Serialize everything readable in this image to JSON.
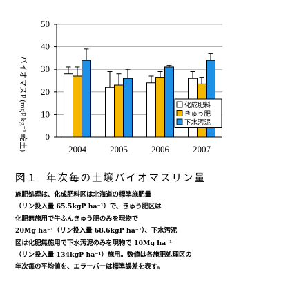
{
  "chart_data": {
    "type": "bar",
    "title": "",
    "ylabel": "バイオマスP (mgP kg⁻¹ 乾土)",
    "xlabel": "",
    "categories": [
      "2004",
      "2005",
      "2006",
      "2007"
    ],
    "ylim": [
      0,
      50
    ],
    "yticks": [
      0,
      10,
      20,
      30,
      40,
      50
    ],
    "series": [
      {
        "name": "化成肥料",
        "color": "#ffffff",
        "values": [
          28,
          22,
          24,
          26
        ],
        "errors": [
          3,
          7,
          3,
          3
        ]
      },
      {
        "name": "きゅう肥",
        "color": "#f5b800",
        "values": [
          27,
          23,
          26.5,
          23.5
        ],
        "errors": [
          4,
          5,
          2.5,
          3
        ]
      },
      {
        "name": "下水汚泥",
        "color": "#1e90e6",
        "values": [
          34,
          26,
          31,
          34
        ],
        "errors": [
          5,
          4,
          0.7,
          3
        ]
      }
    ],
    "legend_position": "bottom-right",
    "grid": false
  },
  "caption": {
    "figure_number": "図１",
    "figure_title": "年次毎の土壌バイオマスリン量",
    "notes": [
      "施肥処理は、化成肥料区は北海道の標準施肥量",
      "（リン投入量 65.5kgP ha⁻¹）で、きゅう肥区は",
      "化肥無施用で牛ふんきゅう肥のみを現物で",
      "20Mg ha⁻¹（リン投入量 68.6kgP ha⁻¹）、下水汚泥",
      "区は化肥無施用で下水汚泥のみを現物で 10Mg ha⁻¹",
      "（リン投入量 134kgP ha⁻¹）施用。数値は各施肥処理区の",
      "年次毎の平均値を、エラーバーは標準誤差を表す。"
    ]
  }
}
